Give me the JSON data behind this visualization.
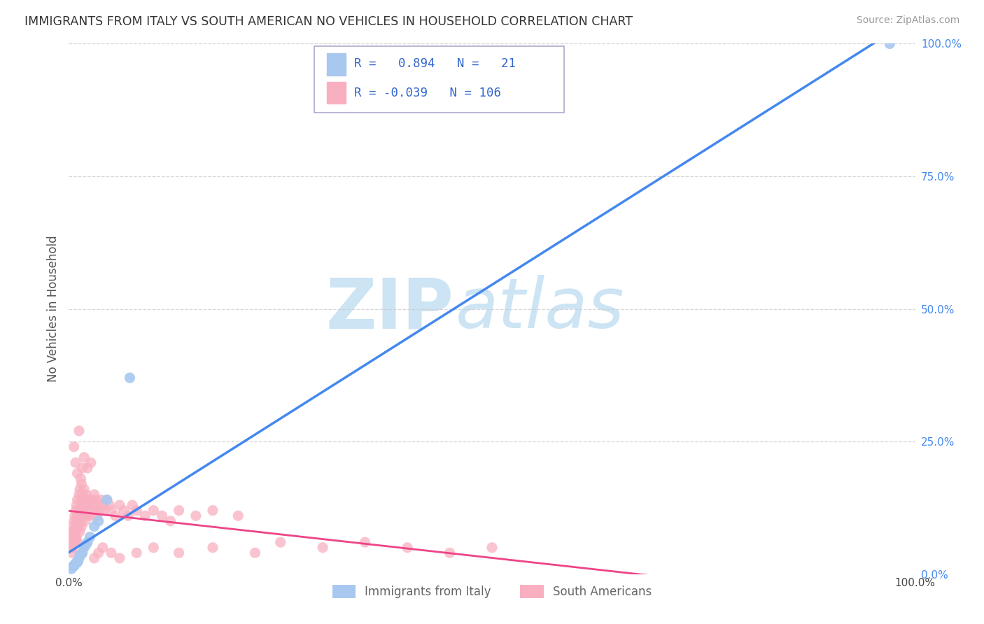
{
  "title": "IMMIGRANTS FROM ITALY VS SOUTH AMERICAN NO VEHICLES IN HOUSEHOLD CORRELATION CHART",
  "source": "Source: ZipAtlas.com",
  "ylabel": "No Vehicles in Household",
  "xlim": [
    0.0,
    1.0
  ],
  "ylim": [
    0.0,
    1.0
  ],
  "grid_color": "#cccccc",
  "background_color": "#ffffff",
  "legend_label_italy": "Immigrants from Italy",
  "legend_label_south": "South Americans",
  "italy_R": 0.894,
  "italy_N": 21,
  "south_R": -0.039,
  "south_N": 106,
  "italy_color": "#a8c8f0",
  "italy_line_color": "#4488ee",
  "south_color": "#f8b0c0",
  "south_line_color": "#ee4488",
  "italy_x": [
    0.003,
    0.005,
    0.006,
    0.007,
    0.008,
    0.009,
    0.01,
    0.011,
    0.012,
    0.013,
    0.015,
    0.016,
    0.018,
    0.02,
    0.022,
    0.025,
    0.03,
    0.035,
    0.045,
    0.072,
    0.97
  ],
  "italy_y": [
    0.01,
    0.015,
    0.015,
    0.018,
    0.02,
    0.022,
    0.022,
    0.025,
    0.03,
    0.035,
    0.038,
    0.04,
    0.05,
    0.055,
    0.06,
    0.07,
    0.09,
    0.1,
    0.14,
    0.37,
    1.0
  ],
  "south_x": [
    0.002,
    0.003,
    0.003,
    0.004,
    0.004,
    0.005,
    0.005,
    0.005,
    0.006,
    0.006,
    0.006,
    0.007,
    0.007,
    0.007,
    0.008,
    0.008,
    0.008,
    0.009,
    0.009,
    0.009,
    0.01,
    0.01,
    0.01,
    0.01,
    0.011,
    0.011,
    0.012,
    0.012,
    0.013,
    0.013,
    0.013,
    0.014,
    0.014,
    0.015,
    0.015,
    0.015,
    0.016,
    0.016,
    0.017,
    0.018,
    0.018,
    0.019,
    0.019,
    0.02,
    0.02,
    0.021,
    0.022,
    0.023,
    0.024,
    0.025,
    0.026,
    0.027,
    0.028,
    0.029,
    0.03,
    0.031,
    0.032,
    0.033,
    0.035,
    0.037,
    0.038,
    0.04,
    0.042,
    0.045,
    0.048,
    0.05,
    0.055,
    0.06,
    0.065,
    0.07,
    0.075,
    0.08,
    0.09,
    0.1,
    0.11,
    0.12,
    0.13,
    0.15,
    0.17,
    0.2,
    0.004,
    0.006,
    0.008,
    0.01,
    0.012,
    0.014,
    0.016,
    0.018,
    0.022,
    0.026,
    0.03,
    0.035,
    0.04,
    0.05,
    0.06,
    0.08,
    0.1,
    0.13,
    0.17,
    0.22,
    0.25,
    0.3,
    0.35,
    0.4,
    0.45,
    0.5
  ],
  "south_y": [
    0.06,
    0.07,
    0.05,
    0.08,
    0.06,
    0.09,
    0.07,
    0.05,
    0.1,
    0.08,
    0.06,
    0.11,
    0.08,
    0.06,
    0.12,
    0.09,
    0.065,
    0.13,
    0.1,
    0.07,
    0.14,
    0.11,
    0.085,
    0.06,
    0.12,
    0.09,
    0.15,
    0.1,
    0.16,
    0.12,
    0.08,
    0.14,
    0.1,
    0.17,
    0.13,
    0.09,
    0.15,
    0.11,
    0.13,
    0.16,
    0.11,
    0.14,
    0.1,
    0.15,
    0.11,
    0.13,
    0.12,
    0.14,
    0.11,
    0.13,
    0.12,
    0.14,
    0.11,
    0.13,
    0.15,
    0.12,
    0.14,
    0.11,
    0.13,
    0.12,
    0.14,
    0.13,
    0.12,
    0.14,
    0.13,
    0.12,
    0.11,
    0.13,
    0.12,
    0.11,
    0.13,
    0.12,
    0.11,
    0.12,
    0.11,
    0.1,
    0.12,
    0.11,
    0.12,
    0.11,
    0.04,
    0.24,
    0.21,
    0.19,
    0.27,
    0.18,
    0.2,
    0.22,
    0.2,
    0.21,
    0.03,
    0.04,
    0.05,
    0.04,
    0.03,
    0.04,
    0.05,
    0.04,
    0.05,
    0.04,
    0.06,
    0.05,
    0.06,
    0.05,
    0.04,
    0.05
  ]
}
